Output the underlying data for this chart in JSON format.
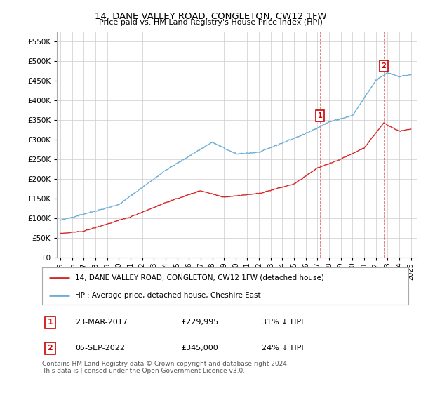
{
  "title": "14, DANE VALLEY ROAD, CONGLETON, CW12 1FW",
  "subtitle": "Price paid vs. HM Land Registry's House Price Index (HPI)",
  "ytick_values": [
    0,
    50000,
    100000,
    150000,
    200000,
    250000,
    300000,
    350000,
    400000,
    450000,
    500000,
    550000
  ],
  "ylim": [
    0,
    575000
  ],
  "hpi_color": "#6baed6",
  "price_color": "#d62728",
  "marker1_date": 2017.22,
  "marker1_price": 229995,
  "marker2_date": 2022.67,
  "marker2_price": 345000,
  "legend_entry1": "14, DANE VALLEY ROAD, CONGLETON, CW12 1FW (detached house)",
  "legend_entry2": "HPI: Average price, detached house, Cheshire East",
  "table_row1": [
    "1",
    "23-MAR-2017",
    "£229,995",
    "31% ↓ HPI"
  ],
  "table_row2": [
    "2",
    "05-SEP-2022",
    "£345,000",
    "24% ↓ HPI"
  ],
  "footnote": "Contains HM Land Registry data © Crown copyright and database right 2024.\nThis data is licensed under the Open Government Licence v3.0.",
  "background_color": "#ffffff",
  "grid_color": "#cccccc"
}
